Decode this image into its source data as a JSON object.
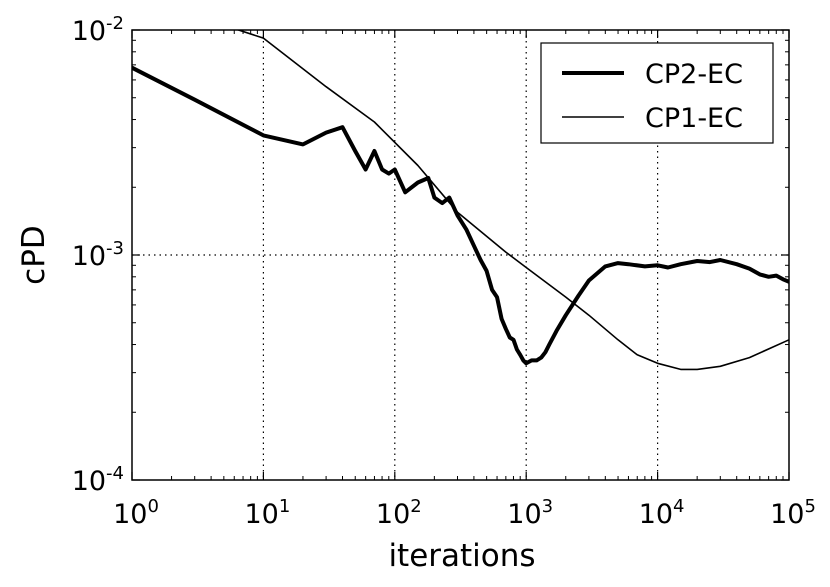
{
  "chart_data": {
    "type": "line",
    "xscale": "log",
    "yscale": "log",
    "xlabel": "iterations",
    "ylabel": "cPD",
    "xlim": [
      1,
      100000
    ],
    "ylim": [
      0.0001,
      0.01
    ],
    "grid": true,
    "legend_position": "top-right",
    "x_ticks": [
      {
        "base": "10",
        "exp": "0"
      },
      {
        "base": "10",
        "exp": "1"
      },
      {
        "base": "10",
        "exp": "2"
      },
      {
        "base": "10",
        "exp": "3"
      },
      {
        "base": "10",
        "exp": "4"
      },
      {
        "base": "10",
        "exp": "5"
      }
    ],
    "y_ticks": [
      {
        "base": "10",
        "exp": "-4"
      },
      {
        "base": "10",
        "exp": "-3"
      },
      {
        "base": "10",
        "exp": "-2"
      }
    ],
    "series": [
      {
        "name": "CP2-EC",
        "color": "#000000",
        "style": "thick",
        "x": [
          1,
          3,
          10,
          20,
          30,
          40,
          50,
          60,
          70,
          80,
          90,
          100,
          120,
          150,
          180,
          200,
          230,
          260,
          300,
          350,
          400,
          450,
          500,
          550,
          600,
          650,
          700,
          750,
          800,
          850,
          900,
          950,
          1000,
          1100,
          1200,
          1300,
          1400,
          1500,
          1700,
          2000,
          2500,
          3000,
          4000,
          5000,
          6000,
          8000,
          10000,
          12000,
          15000,
          20000,
          25000,
          30000,
          40000,
          50000,
          60000,
          70000,
          80000,
          90000,
          100000
        ],
        "y": [
          0.0068,
          0.0049,
          0.0034,
          0.0031,
          0.0035,
          0.0037,
          0.0029,
          0.0024,
          0.0029,
          0.0024,
          0.0023,
          0.0024,
          0.0019,
          0.0021,
          0.0022,
          0.0018,
          0.0017,
          0.0018,
          0.0015,
          0.0013,
          0.0011,
          0.00095,
          0.00085,
          0.0007,
          0.00065,
          0.00052,
          0.00047,
          0.00043,
          0.00042,
          0.00038,
          0.00036,
          0.00034,
          0.00033,
          0.00034,
          0.00034,
          0.00035,
          0.00037,
          0.0004,
          0.00046,
          0.00054,
          0.00066,
          0.00077,
          0.00089,
          0.00092,
          0.00091,
          0.00089,
          0.0009,
          0.00088,
          0.00091,
          0.00094,
          0.00093,
          0.00095,
          0.00091,
          0.00087,
          0.00082,
          0.0008,
          0.00081,
          0.00078,
          0.00076
        ]
      },
      {
        "name": "CP1-EC",
        "color": "#000000",
        "style": "thin",
        "x": [
          5,
          10,
          30,
          70,
          150,
          300,
          700,
          1000,
          2000,
          3000,
          5000,
          7000,
          10000,
          15000,
          20000,
          30000,
          50000,
          100000
        ],
        "y": [
          0.0105,
          0.0092,
          0.0056,
          0.0039,
          0.0025,
          0.00155,
          0.00103,
          0.00088,
          0.00065,
          0.00054,
          0.00042,
          0.00036,
          0.00033,
          0.00031,
          0.00031,
          0.00032,
          0.00035,
          0.00042
        ]
      }
    ]
  }
}
